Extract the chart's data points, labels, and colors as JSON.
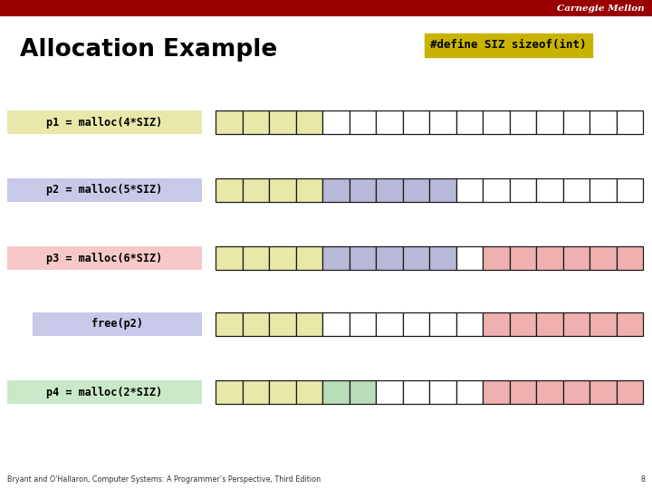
{
  "title": "Allocation Example",
  "define_text": "#define SIZ sizeof(int)",
  "bg_color": "#ffffff",
  "header_color": "#990000",
  "title_color": "#000000",
  "define_bg": "#c8b400",
  "footer_text": "Bryant and O'Hallaron, Computer Systems: A Programmer’s Perspective, Third Edition",
  "footer_page": "8",
  "total_blocks": 16,
  "rows": [
    {
      "label": "p1 = malloc(4*SIZ)",
      "label_bg": "#e8e8aa",
      "label_indent": false,
      "blocks": [
        {
          "color": "#e8e8a8",
          "count": 4
        },
        {
          "color": "#ffffff",
          "count": 12
        }
      ]
    },
    {
      "label": "p2 = malloc(5*SIZ)",
      "label_bg": "#c8c8e8",
      "label_indent": false,
      "blocks": [
        {
          "color": "#e8e8a8",
          "count": 4
        },
        {
          "color": "#b8b8d8",
          "count": 5
        },
        {
          "color": "#ffffff",
          "count": 7
        }
      ]
    },
    {
      "label": "p3 = malloc(6*SIZ)",
      "label_bg": "#f8c8c8",
      "label_indent": false,
      "blocks": [
        {
          "color": "#e8e8a8",
          "count": 4
        },
        {
          "color": "#b8b8d8",
          "count": 5
        },
        {
          "color": "#ffffff",
          "count": 1
        },
        {
          "color": "#f0b0b0",
          "count": 6
        }
      ]
    },
    {
      "label": "free(p2)",
      "label_bg": "#c8c8e8",
      "label_indent": true,
      "blocks": [
        {
          "color": "#e8e8a8",
          "count": 4
        },
        {
          "color": "#ffffff",
          "count": 6
        },
        {
          "color": "#f0b0b0",
          "count": 6
        }
      ]
    },
    {
      "label": "p4 = malloc(2*SIZ)",
      "label_bg": "#c8e8c8",
      "label_indent": false,
      "blocks": [
        {
          "color": "#e8e8a8",
          "count": 4
        },
        {
          "color": "#b8ddb8",
          "count": 2
        },
        {
          "color": "#ffffff",
          "count": 4
        },
        {
          "color": "#f0b0b0",
          "count": 6
        }
      ]
    }
  ]
}
